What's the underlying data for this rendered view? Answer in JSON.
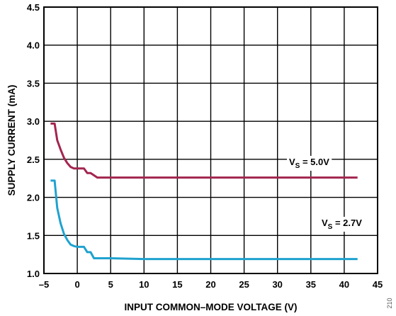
{
  "chart_data": {
    "type": "line",
    "xlabel": "INPUT COMMON–MODE VOLTAGE (V)",
    "ylabel": "SUPPLY CURRENT (mA)",
    "xlim": [
      -5,
      45
    ],
    "ylim": [
      1.0,
      4.5
    ],
    "x_ticks": [
      "–5",
      "0",
      "5",
      "10",
      "15",
      "20",
      "25",
      "30",
      "35",
      "40",
      "45"
    ],
    "y_ticks": [
      "1.0",
      "1.5",
      "2.0",
      "2.5",
      "3.0",
      "3.5",
      "4.0",
      "4.5"
    ],
    "grid": true,
    "series": [
      {
        "annotation_main": "V",
        "annotation_sub": "S",
        "annotation_value": " = 5.0V",
        "color": "#a3254f",
        "x": [
          -4.0,
          -3.4,
          -3.0,
          -2.5,
          -2.0,
          -1.5,
          -1.0,
          -0.5,
          0.0,
          0.5,
          1.0,
          1.5,
          2.0,
          2.5,
          3.0,
          4.0,
          10,
          20,
          30,
          42
        ],
        "y": [
          2.97,
          2.97,
          2.75,
          2.63,
          2.52,
          2.45,
          2.4,
          2.38,
          2.38,
          2.38,
          2.38,
          2.32,
          2.32,
          2.29,
          2.26,
          2.26,
          2.26,
          2.26,
          2.26,
          2.26
        ]
      },
      {
        "annotation_main": "V",
        "annotation_sub": "S",
        "annotation_value": " = 2.7V",
        "color": "#1fa2cf",
        "x": [
          -4.0,
          -3.4,
          -3.0,
          -2.5,
          -2.0,
          -1.5,
          -1.0,
          -0.5,
          0.0,
          0.5,
          1.0,
          1.5,
          2.0,
          2.5,
          5.0,
          10,
          20,
          30,
          42
        ],
        "y": [
          2.22,
          2.22,
          1.86,
          1.66,
          1.52,
          1.44,
          1.38,
          1.36,
          1.35,
          1.35,
          1.35,
          1.28,
          1.28,
          1.2,
          1.2,
          1.19,
          1.19,
          1.19,
          1.19
        ]
      }
    ],
    "figure_id": "210"
  }
}
